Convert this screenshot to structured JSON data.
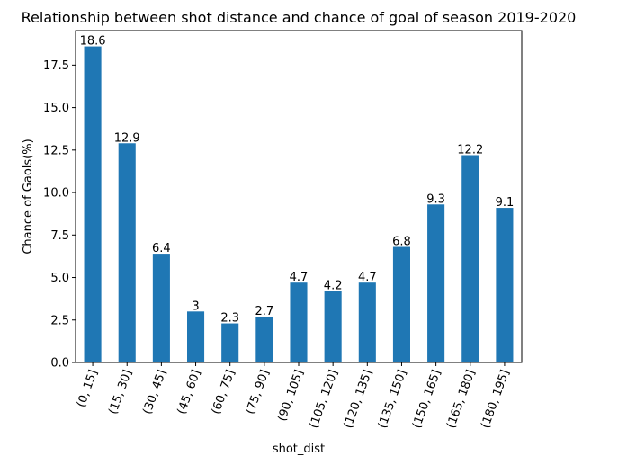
{
  "chart_data": {
    "type": "bar",
    "title": "Relationship between shot distance and chance of goal of season 2019-2020",
    "xlabel": "shot_dist",
    "ylabel": "Chance of Gaols(%)",
    "categories": [
      "(0, 15]",
      "(15, 30]",
      "(30, 45]",
      "(45, 60]",
      "(60, 75]",
      "(75, 90]",
      "(90, 105]",
      "(105, 120]",
      "(120, 135]",
      "(135, 150]",
      "(150, 165]",
      "(165, 180]",
      "(180, 195]"
    ],
    "values": [
      18.6,
      12.9,
      6.4,
      3,
      2.3,
      2.7,
      4.7,
      4.2,
      4.7,
      6.8,
      9.3,
      12.2,
      9.1
    ],
    "data_labels": [
      "18.6",
      "12.9",
      "6.4",
      "3",
      "2.3",
      "2.7",
      "4.7",
      "4.2",
      "4.7",
      "6.8",
      "9.3",
      "12.2",
      "9.1"
    ],
    "yticks": [
      0,
      2.5,
      5,
      7.5,
      10,
      12.5,
      15,
      17.5
    ],
    "ytick_labels": [
      "0.0",
      "2.5",
      "5.0",
      "7.5",
      "10.0",
      "12.5",
      "15.0",
      "17.5"
    ],
    "ylim": [
      0,
      19.53
    ],
    "bar_color": "#1f77b4",
    "grid": false,
    "legend": false
  }
}
